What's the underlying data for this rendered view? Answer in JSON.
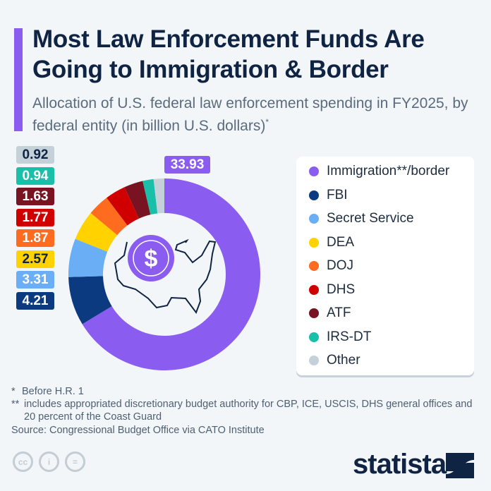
{
  "title": "Most Law Enforcement Funds Are Going to Immigration & Border",
  "subtitle": "Allocation of U.S. federal law enforcement spending in FY2025, by federal entity (in billion U.S. dollars)",
  "subtitle_mark": "*",
  "chart_data": {
    "type": "pie",
    "style": "donut",
    "unit": "billion U.S. dollars",
    "categories": [
      "Immigration**/border",
      "FBI",
      "Secret Service",
      "DEA",
      "DOJ",
      "DHS",
      "ATF",
      "IRS-DT",
      "Other"
    ],
    "values": [
      33.93,
      4.21,
      3.31,
      2.57,
      1.87,
      1.77,
      1.63,
      0.94,
      0.92
    ],
    "value_labels": [
      "33.93",
      "4.21",
      "3.31",
      "2.57",
      "1.87",
      "1.77",
      "1.63",
      "0.94",
      "0.92"
    ],
    "colors": [
      "#8a5cf0",
      "#0b3a80",
      "#6aaef5",
      "#ffd200",
      "#ff6b1f",
      "#d10000",
      "#7a1321",
      "#19bfa8",
      "#c5d1d9"
    ],
    "label_text_colors": [
      "#ffffff",
      "#ffffff",
      "#ffffff",
      "#0f2342",
      "#ffffff",
      "#ffffff",
      "#ffffff",
      "#ffffff",
      "#0f2342"
    ],
    "legend_position": "right",
    "center_icon": "us-map-dollar-icon"
  },
  "footnotes": [
    {
      "mark": "*",
      "text": "Before H.R. 1"
    },
    {
      "mark": "**",
      "text": "includes appropriated discretionary budget authority for CBP, ICE, USCIS, DHS general offices and 20 percent of the Coast Guard"
    }
  ],
  "source": "Source: Congressional Budget Office via CATO Institute",
  "license_icons": [
    "cc-icon",
    "attribution-icon",
    "no-derivatives-icon"
  ],
  "brand": "statista"
}
